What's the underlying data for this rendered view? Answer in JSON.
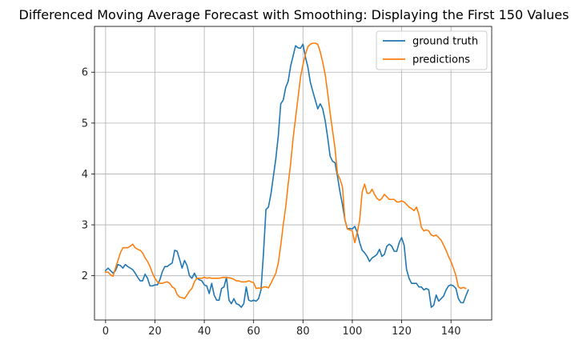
{
  "chart_data": {
    "type": "line",
    "title": "Differenced Moving Average Forecast with Smoothing: Displaying the First 150 Values",
    "xlabel": "",
    "ylabel": "",
    "xlim": [
      -4.5,
      156.5
    ],
    "ylim": [
      1.13,
      6.9
    ],
    "xticks": [
      0,
      20,
      40,
      60,
      80,
      100,
      120,
      140
    ],
    "yticks": [
      2,
      3,
      4,
      5,
      6
    ],
    "grid": true,
    "legend_position": "top-right",
    "series": [
      {
        "name": "ground truth",
        "color": "#1f77b4",
        "points": [
          [
            0,
            2.1
          ],
          [
            1,
            2.15
          ],
          [
            2,
            2.1
          ],
          [
            3,
            2.05
          ],
          [
            4,
            2.1
          ],
          [
            5,
            2.22
          ],
          [
            6,
            2.2
          ],
          [
            7,
            2.15
          ],
          [
            8,
            2.22
          ],
          [
            9,
            2.18
          ],
          [
            10,
            2.15
          ],
          [
            11,
            2.12
          ],
          [
            12,
            2.05
          ],
          [
            13,
            1.97
          ],
          [
            14,
            1.9
          ],
          [
            15,
            1.9
          ],
          [
            16,
            2.03
          ],
          [
            17,
            1.95
          ],
          [
            18,
            1.8
          ],
          [
            19,
            1.8
          ],
          [
            20,
            1.82
          ],
          [
            21,
            1.82
          ],
          [
            22,
            1.92
          ],
          [
            23,
            2.08
          ],
          [
            24,
            2.18
          ],
          [
            25,
            2.18
          ],
          [
            26,
            2.22
          ],
          [
            27,
            2.25
          ],
          [
            28,
            2.5
          ],
          [
            29,
            2.48
          ],
          [
            30,
            2.32
          ],
          [
            31,
            2.15
          ],
          [
            32,
            2.3
          ],
          [
            33,
            2.2
          ],
          [
            34,
            2.0
          ],
          [
            35,
            1.95
          ],
          [
            36,
            2.05
          ],
          [
            37,
            1.95
          ],
          [
            38,
            1.92
          ],
          [
            39,
            1.9
          ],
          [
            40,
            1.82
          ],
          [
            41,
            1.8
          ],
          [
            42,
            1.65
          ],
          [
            43,
            1.85
          ],
          [
            44,
            1.62
          ],
          [
            45,
            1.52
          ],
          [
            46,
            1.52
          ],
          [
            47,
            1.75
          ],
          [
            48,
            1.78
          ],
          [
            49,
            1.97
          ],
          [
            50,
            1.52
          ],
          [
            51,
            1.45
          ],
          [
            52,
            1.55
          ],
          [
            53,
            1.45
          ],
          [
            54,
            1.43
          ],
          [
            55,
            1.38
          ],
          [
            56,
            1.45
          ],
          [
            57,
            1.78
          ],
          [
            58,
            1.52
          ],
          [
            59,
            1.5
          ],
          [
            60,
            1.52
          ],
          [
            61,
            1.5
          ],
          [
            62,
            1.55
          ],
          [
            63,
            1.72
          ],
          [
            64,
            2.45
          ],
          [
            65,
            3.3
          ],
          [
            66,
            3.35
          ],
          [
            67,
            3.6
          ],
          [
            68,
            3.95
          ],
          [
            69,
            4.3
          ],
          [
            70,
            4.75
          ],
          [
            71,
            5.38
          ],
          [
            72,
            5.45
          ],
          [
            73,
            5.7
          ],
          [
            74,
            5.82
          ],
          [
            75,
            6.12
          ],
          [
            76,
            6.32
          ],
          [
            77,
            6.52
          ],
          [
            78,
            6.48
          ],
          [
            79,
            6.47
          ],
          [
            80,
            6.55
          ],
          [
            81,
            6.3
          ],
          [
            82,
            6.1
          ],
          [
            83,
            5.8
          ],
          [
            84,
            5.62
          ],
          [
            85,
            5.45
          ],
          [
            86,
            5.28
          ],
          [
            87,
            5.38
          ],
          [
            88,
            5.28
          ],
          [
            89,
            5.05
          ],
          [
            90,
            4.72
          ],
          [
            91,
            4.35
          ],
          [
            92,
            4.25
          ],
          [
            93,
            4.22
          ],
          [
            94,
            3.95
          ],
          [
            95,
            3.65
          ],
          [
            96,
            3.4
          ],
          [
            97,
            3.1
          ],
          [
            98,
            2.92
          ],
          [
            99,
            2.93
          ],
          [
            100,
            2.92
          ],
          [
            101,
            2.97
          ],
          [
            102,
            2.85
          ],
          [
            103,
            2.65
          ],
          [
            104,
            2.5
          ],
          [
            105,
            2.45
          ],
          [
            106,
            2.38
          ],
          [
            107,
            2.28
          ],
          [
            108,
            2.35
          ],
          [
            109,
            2.38
          ],
          [
            110,
            2.42
          ],
          [
            111,
            2.52
          ],
          [
            112,
            2.38
          ],
          [
            113,
            2.42
          ],
          [
            114,
            2.58
          ],
          [
            115,
            2.62
          ],
          [
            116,
            2.58
          ],
          [
            117,
            2.48
          ],
          [
            118,
            2.48
          ],
          [
            119,
            2.65
          ],
          [
            120,
            2.75
          ],
          [
            121,
            2.6
          ],
          [
            122,
            2.12
          ],
          [
            123,
            1.95
          ],
          [
            124,
            1.85
          ],
          [
            125,
            1.85
          ],
          [
            126,
            1.85
          ],
          [
            127,
            1.78
          ],
          [
            128,
            1.78
          ],
          [
            129,
            1.72
          ],
          [
            130,
            1.75
          ],
          [
            131,
            1.72
          ],
          [
            132,
            1.38
          ],
          [
            133,
            1.42
          ],
          [
            134,
            1.62
          ],
          [
            135,
            1.5
          ],
          [
            136,
            1.55
          ],
          [
            137,
            1.6
          ],
          [
            138,
            1.72
          ],
          [
            139,
            1.8
          ],
          [
            140,
            1.82
          ],
          [
            141,
            1.8
          ],
          [
            142,
            1.75
          ],
          [
            143,
            1.55
          ],
          [
            144,
            1.47
          ],
          [
            145,
            1.47
          ],
          [
            146,
            1.6
          ],
          [
            147,
            1.72
          ]
        ]
      },
      {
        "name": "predictions",
        "color": "#ff7f0e",
        "points": [
          [
            0,
            2.07
          ],
          [
            1,
            2.07
          ],
          [
            2,
            2.02
          ],
          [
            3,
            1.99
          ],
          [
            4,
            2.15
          ],
          [
            5,
            2.3
          ],
          [
            6,
            2.45
          ],
          [
            7,
            2.55
          ],
          [
            8,
            2.55
          ],
          [
            9,
            2.55
          ],
          [
            10,
            2.58
          ],
          [
            11,
            2.62
          ],
          [
            12,
            2.55
          ],
          [
            13,
            2.52
          ],
          [
            14,
            2.5
          ],
          [
            15,
            2.45
          ],
          [
            16,
            2.35
          ],
          [
            17,
            2.28
          ],
          [
            18,
            2.18
          ],
          [
            19,
            2.05
          ],
          [
            20,
            1.95
          ],
          [
            21,
            1.88
          ],
          [
            22,
            1.85
          ],
          [
            23,
            1.85
          ],
          [
            24,
            1.87
          ],
          [
            25,
            1.88
          ],
          [
            26,
            1.85
          ],
          [
            27,
            1.78
          ],
          [
            28,
            1.75
          ],
          [
            29,
            1.63
          ],
          [
            30,
            1.58
          ],
          [
            31,
            1.57
          ],
          [
            32,
            1.55
          ],
          [
            33,
            1.62
          ],
          [
            34,
            1.7
          ],
          [
            35,
            1.75
          ],
          [
            36,
            1.88
          ],
          [
            37,
            1.95
          ],
          [
            38,
            1.95
          ],
          [
            39,
            1.95
          ],
          [
            40,
            1.97
          ],
          [
            41,
            1.95
          ],
          [
            42,
            1.96
          ],
          [
            43,
            1.95
          ],
          [
            44,
            1.95
          ],
          [
            45,
            1.95
          ],
          [
            46,
            1.95
          ],
          [
            47,
            1.96
          ],
          [
            48,
            1.97
          ],
          [
            49,
            1.96
          ],
          [
            50,
            1.96
          ],
          [
            51,
            1.95
          ],
          [
            52,
            1.93
          ],
          [
            53,
            1.9
          ],
          [
            54,
            1.9
          ],
          [
            55,
            1.88
          ],
          [
            56,
            1.88
          ],
          [
            57,
            1.88
          ],
          [
            58,
            1.9
          ],
          [
            59,
            1.88
          ],
          [
            60,
            1.86
          ],
          [
            61,
            1.75
          ],
          [
            62,
            1.76
          ],
          [
            63,
            1.75
          ],
          [
            64,
            1.78
          ],
          [
            65,
            1.78
          ],
          [
            66,
            1.76
          ],
          [
            67,
            1.85
          ],
          [
            68,
            1.95
          ],
          [
            69,
            2.05
          ],
          [
            70,
            2.25
          ],
          [
            71,
            2.6
          ],
          [
            72,
            3.0
          ],
          [
            73,
            3.35
          ],
          [
            74,
            3.8
          ],
          [
            75,
            4.2
          ],
          [
            76,
            4.7
          ],
          [
            77,
            5.1
          ],
          [
            78,
            5.5
          ],
          [
            79,
            5.9
          ],
          [
            80,
            6.15
          ],
          [
            81,
            6.35
          ],
          [
            82,
            6.5
          ],
          [
            83,
            6.55
          ],
          [
            84,
            6.57
          ],
          [
            85,
            6.57
          ],
          [
            86,
            6.55
          ],
          [
            87,
            6.4
          ],
          [
            88,
            6.2
          ],
          [
            89,
            5.95
          ],
          [
            90,
            5.6
          ],
          [
            91,
            5.2
          ],
          [
            92,
            4.85
          ],
          [
            93,
            4.5
          ],
          [
            94,
            4.0
          ],
          [
            95,
            3.9
          ],
          [
            96,
            3.75
          ],
          [
            97,
            3.1
          ],
          [
            98,
            2.92
          ],
          [
            99,
            2.9
          ],
          [
            100,
            2.88
          ],
          [
            101,
            2.65
          ],
          [
            102,
            2.85
          ],
          [
            103,
            3.1
          ],
          [
            104,
            3.65
          ],
          [
            105,
            3.8
          ],
          [
            106,
            3.62
          ],
          [
            107,
            3.62
          ],
          [
            108,
            3.7
          ],
          [
            109,
            3.6
          ],
          [
            110,
            3.52
          ],
          [
            111,
            3.48
          ],
          [
            112,
            3.52
          ],
          [
            113,
            3.6
          ],
          [
            114,
            3.55
          ],
          [
            115,
            3.5
          ],
          [
            116,
            3.5
          ],
          [
            117,
            3.5
          ],
          [
            118,
            3.45
          ],
          [
            119,
            3.45
          ],
          [
            120,
            3.47
          ],
          [
            121,
            3.45
          ],
          [
            122,
            3.4
          ],
          [
            123,
            3.35
          ],
          [
            124,
            3.32
          ],
          [
            125,
            3.28
          ],
          [
            126,
            3.35
          ],
          [
            127,
            3.2
          ],
          [
            128,
            2.95
          ],
          [
            129,
            2.88
          ],
          [
            130,
            2.9
          ],
          [
            131,
            2.88
          ],
          [
            132,
            2.8
          ],
          [
            133,
            2.78
          ],
          [
            134,
            2.8
          ],
          [
            135,
            2.75
          ],
          [
            136,
            2.7
          ],
          [
            137,
            2.6
          ],
          [
            138,
            2.5
          ],
          [
            139,
            2.38
          ],
          [
            140,
            2.28
          ],
          [
            141,
            2.15
          ],
          [
            142,
            2.0
          ],
          [
            143,
            1.78
          ],
          [
            144,
            1.75
          ],
          [
            145,
            1.77
          ],
          [
            146,
            1.75
          ]
        ]
      }
    ]
  }
}
